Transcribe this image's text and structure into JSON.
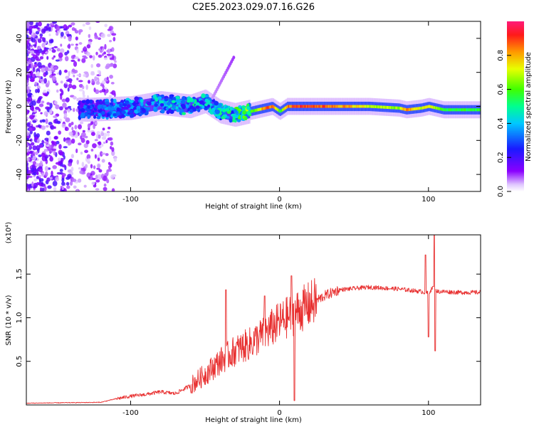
{
  "figure_title": "C2E5.2023.029.07.16.G26",
  "chart_data": [
    {
      "type": "heatmap",
      "title": "C2E5.2023.029.07.16.G26",
      "xlabel": "Height of straight line (km)",
      "ylabel": "Frequency (Hz)",
      "xlim": [
        -170,
        135
      ],
      "ylim": [
        -50,
        50
      ],
      "x_ticks": [
        -100,
        0,
        100
      ],
      "y_ticks": [
        -40,
        -20,
        0,
        20,
        40
      ],
      "colorbar": {
        "label": "Normalized spectral amplitude",
        "range": [
          0,
          1
        ],
        "ticks": [
          "0.0",
          "0.2",
          "0.4",
          "0.6",
          "0.8"
        ],
        "colormap": "rainbow (white-violet-blue-cyan-green-yellow-orange-red-pink)"
      },
      "ridge": {
        "description": "Dominant spectral ridge: scattered noise at low heights, coherent narrow band near 0 Hz above about -10 km",
        "x": [
          -170,
          -130,
          -100,
          -80,
          -60,
          -50,
          -40,
          -30,
          -20,
          -10,
          -5,
          0,
          5,
          20,
          40,
          60,
          80,
          85,
          95,
          100,
          110,
          135
        ],
        "freq_hz": [
          0,
          -2,
          -1,
          2,
          0,
          3,
          -3,
          -5,
          -3,
          -1,
          0,
          -3,
          0,
          0,
          0,
          0,
          -1,
          -2,
          -1,
          0,
          -2,
          -2
        ],
        "amplitude": [
          0.15,
          0.3,
          0.35,
          0.4,
          0.45,
          0.4,
          0.45,
          0.5,
          0.6,
          0.9,
          0.95,
          0.6,
          0.95,
          0.97,
          0.9,
          0.75,
          0.7,
          0.9,
          0.75,
          0.8,
          0.6,
          0.6
        ]
      },
      "annotations": [
        {
          "x": -32,
          "freq_hz": 30,
          "note": "weak streak rising toward 30 Hz"
        }
      ]
    },
    {
      "type": "line",
      "xlabel": "Height of straight line (km)",
      "ylabel": "SNR (10 * v/v)",
      "scale_label": "(x10⁴)",
      "xlim": [
        -170,
        135
      ],
      "ylim": [
        0,
        1.95
      ],
      "x_ticks": [
        -100,
        0,
        100
      ],
      "y_ticks": [
        "0.5",
        "1.0",
        "1.5"
      ],
      "series": [
        {
          "name": "SNR",
          "color": "#e83030",
          "envelope_x": [
            -170,
            -120,
            -110,
            -100,
            -90,
            -80,
            -70,
            -60,
            -50,
            -40,
            -30,
            -20,
            -10,
            0,
            10,
            20,
            30,
            40,
            60,
            80,
            95,
            100,
            103,
            106,
            110,
            120,
            135
          ],
          "envelope_y": [
            0.02,
            0.03,
            0.07,
            0.1,
            0.12,
            0.15,
            0.13,
            0.22,
            0.35,
            0.5,
            0.62,
            0.7,
            0.82,
            0.95,
            1.05,
            1.15,
            1.25,
            1.32,
            1.35,
            1.33,
            1.3,
            1.28,
            1.35,
            1.3,
            1.3,
            1.29,
            1.29
          ],
          "peaks": [
            {
              "x": -36,
              "y": 1.32
            },
            {
              "x": -10,
              "y": 1.25
            },
            {
              "x": 8,
              "y": 1.48
            },
            {
              "x": 10,
              "y": 0.05
            },
            {
              "x": 98,
              "y": 1.72
            },
            {
              "x": 100,
              "y": 0.78
            },
            {
              "x": 104,
              "y": 1.95
            },
            {
              "x": 104.5,
              "y": 0.62
            }
          ]
        }
      ]
    }
  ]
}
